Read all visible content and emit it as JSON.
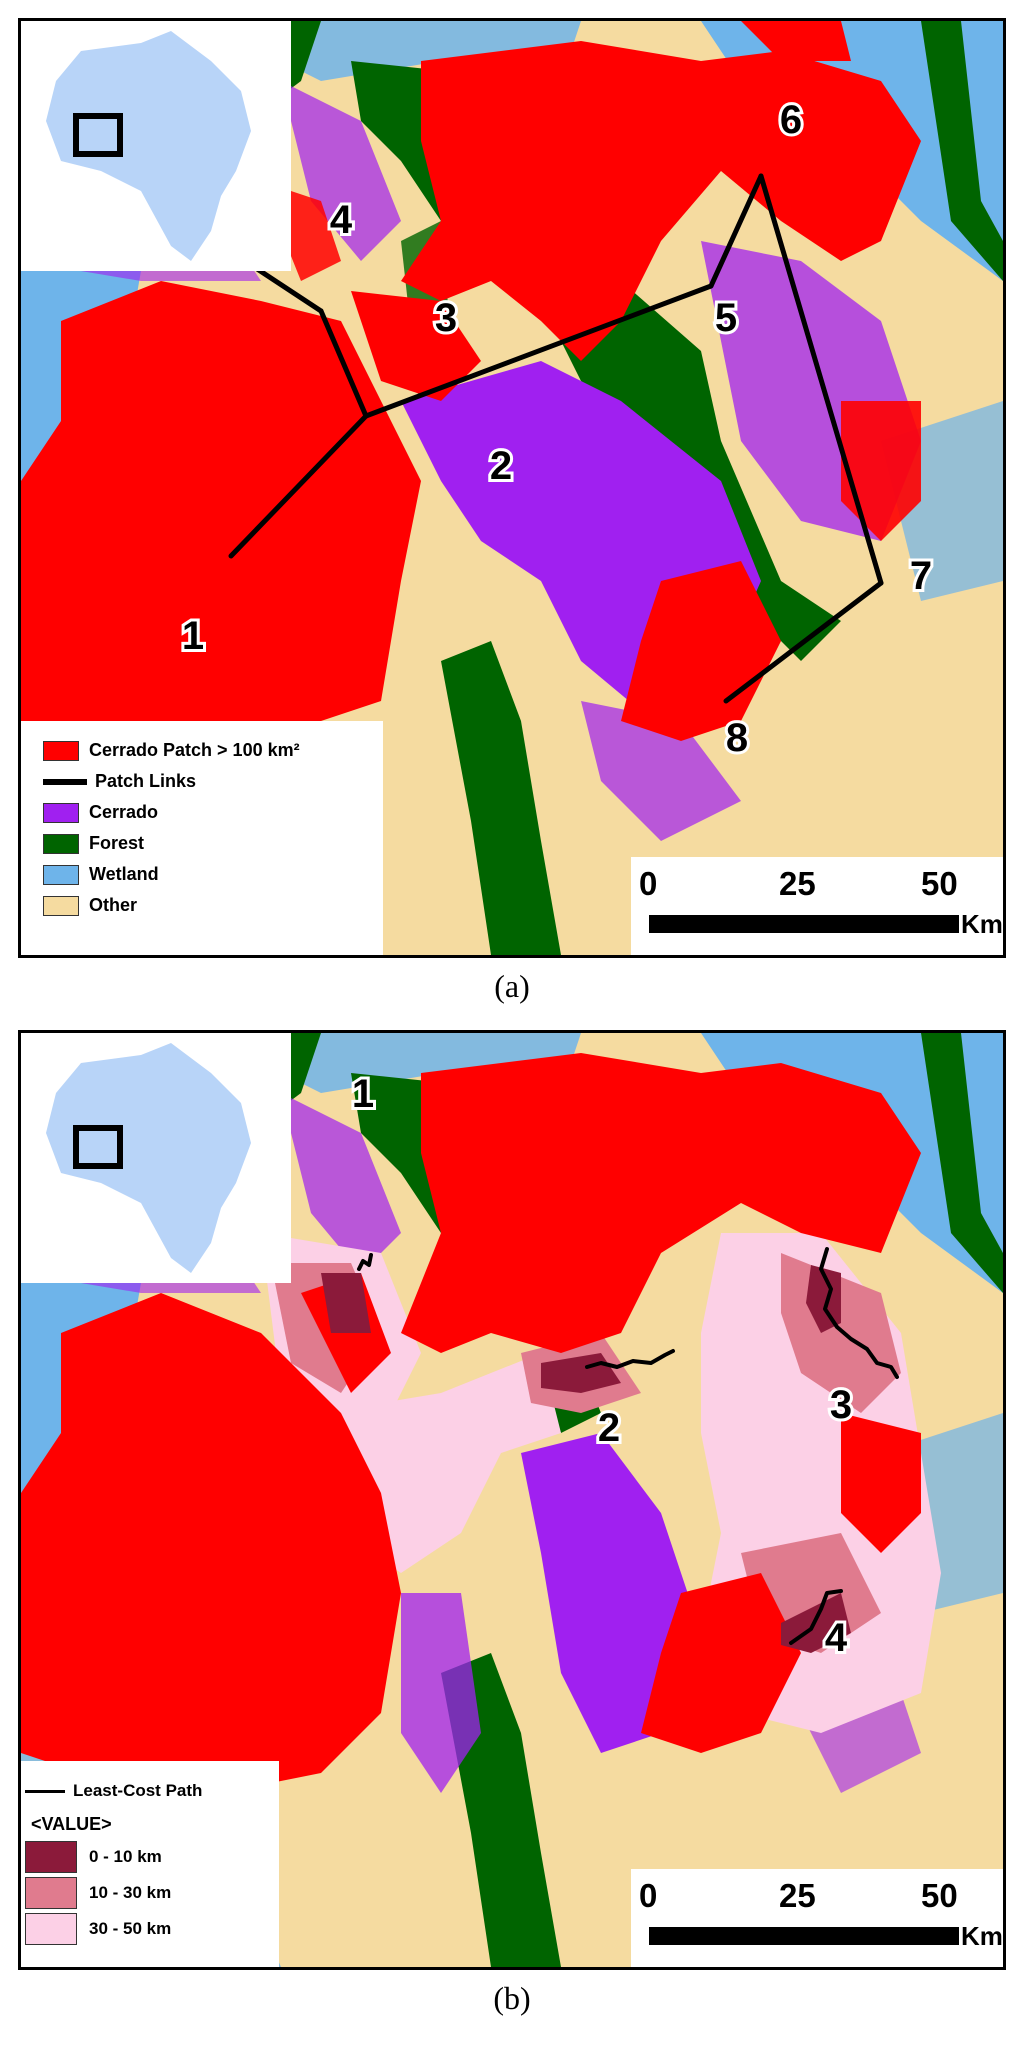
{
  "panel_a": {
    "caption": "(a)",
    "legend": [
      {
        "label": "Cerrado Patch > 100 km²",
        "kind": "box",
        "color": "#ff0000"
      },
      {
        "label": "Patch Links",
        "kind": "line",
        "color": "#000000"
      },
      {
        "label": "Cerrado",
        "kind": "box",
        "color": "#a020f0"
      },
      {
        "label": "Forest",
        "kind": "box",
        "color": "#006400"
      },
      {
        "label": "Wetland",
        "kind": "box",
        "color": "#6eb4ea"
      },
      {
        "label": "Other",
        "kind": "box",
        "color": "#f5dba0"
      }
    ],
    "patch_labels": [
      "1",
      "2",
      "3",
      "4",
      "5",
      "6",
      "7",
      "8"
    ],
    "scale": {
      "ticks": [
        "0",
        "25",
        "50"
      ],
      "unit": "Km"
    }
  },
  "panel_b": {
    "caption": "(b)",
    "legend_line_label": "Least-Cost Path",
    "legend_title": "<VALUE>",
    "legend": [
      {
        "label": "0 - 10 km",
        "color": "#8b1a3a"
      },
      {
        "label": "10 - 30 km",
        "color": "#e07b8e"
      },
      {
        "label": "30 - 50 km",
        "color": "#fcd0e6"
      }
    ],
    "path_labels": [
      "1",
      "2",
      "3",
      "4"
    ],
    "scale": {
      "ticks": [
        "0",
        "25",
        "50"
      ],
      "unit": "Km"
    }
  },
  "colors": {
    "cerrado_patch": "#ff0000",
    "cerrado": "#a020f0",
    "forest": "#006400",
    "wetland": "#6eb4ea",
    "other": "#f5dba0",
    "inset_state": "#b8d4f8"
  }
}
